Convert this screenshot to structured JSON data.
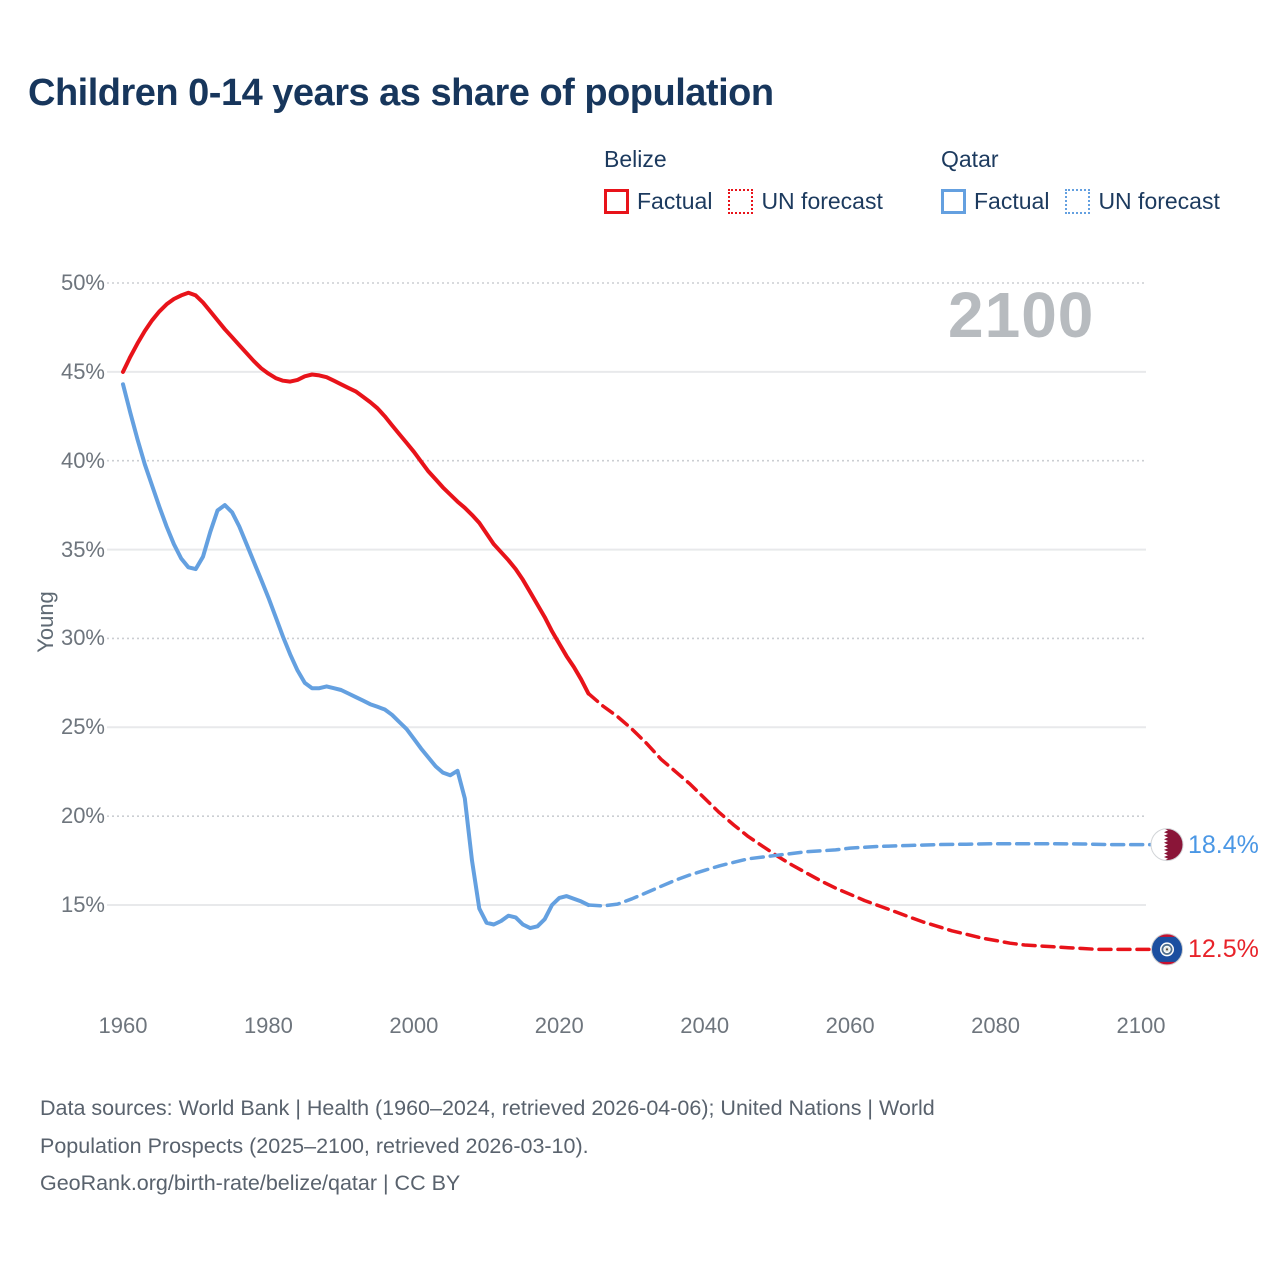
{
  "title": "Children 0-14 years as share of population",
  "watermark": "2100",
  "colors": {
    "belize": "#e8131a",
    "qatar": "#64a0e0",
    "end_label_red": "#e8232a",
    "end_label_blue": "#4a97e5",
    "grid_solid": "#e8e9eb",
    "grid_dotted": "#cbced2",
    "qatar_flag_maroon": "#8a1538",
    "belize_flag_blue": "#1b4fa0",
    "belize_flag_red": "#c8102e"
  },
  "legend": {
    "groups": [
      {
        "name": "Belize",
        "color_key": "belize",
        "items": [
          {
            "label": "Factual",
            "style": "solid"
          },
          {
            "label": "UN forecast",
            "style": "dotted"
          }
        ]
      },
      {
        "name": "Qatar",
        "color_key": "qatar",
        "items": [
          {
            "label": "Factual",
            "style": "solid"
          },
          {
            "label": "UN forecast",
            "style": "dotted"
          }
        ]
      }
    ]
  },
  "footer": {
    "lines": [
      "Data sources: World Bank | Health (1960–2024, retrieved 2026-04-06); United Nations | World",
      "Population Prospects (2025–2100, retrieved 2026-03-10).",
      "GeoRank.org/birth-rate/belize/qatar | CC BY"
    ]
  },
  "chart_data": {
    "type": "line",
    "title": "Children 0-14 years as share of population",
    "xlabel": "",
    "ylabel": "Young",
    "xlim": [
      1960,
      2100
    ],
    "ylim": [
      12,
      50
    ],
    "x_ticks": [
      1960,
      1980,
      2000,
      2020,
      2040,
      2060,
      2080,
      2100
    ],
    "y_ticks": [
      50,
      45,
      40,
      35,
      30,
      25,
      20,
      15
    ],
    "grid": "on",
    "legend_position": "top-right",
    "series": [
      {
        "id": "belize-factual",
        "name": "Belize Factual",
        "style": "solid",
        "color_key": "belize",
        "points": [
          [
            1960,
            45.0
          ],
          [
            1961,
            45.85
          ],
          [
            1962,
            46.6
          ],
          [
            1963,
            47.3
          ],
          [
            1964,
            47.9
          ],
          [
            1965,
            48.4
          ],
          [
            1966,
            48.8
          ],
          [
            1967,
            49.1
          ],
          [
            1968,
            49.3
          ],
          [
            1969,
            49.45
          ],
          [
            1970,
            49.3
          ],
          [
            1971,
            48.9
          ],
          [
            1972,
            48.4
          ],
          [
            1973,
            47.9
          ],
          [
            1974,
            47.4
          ],
          [
            1975,
            46.95
          ],
          [
            1976,
            46.5
          ],
          [
            1977,
            46.05
          ],
          [
            1978,
            45.6
          ],
          [
            1979,
            45.2
          ],
          [
            1980,
            44.9
          ],
          [
            1981,
            44.65
          ],
          [
            1982,
            44.5
          ],
          [
            1983,
            44.45
          ],
          [
            1984,
            44.55
          ],
          [
            1985,
            44.75
          ],
          [
            1986,
            44.85
          ],
          [
            1987,
            44.8
          ],
          [
            1988,
            44.7
          ],
          [
            1989,
            44.5
          ],
          [
            1990,
            44.3
          ],
          [
            1991,
            44.1
          ],
          [
            1992,
            43.9
          ],
          [
            1993,
            43.6
          ],
          [
            1994,
            43.3
          ],
          [
            1995,
            42.95
          ],
          [
            1996,
            42.5
          ],
          [
            1997,
            42.0
          ],
          [
            1998,
            41.5
          ],
          [
            1999,
            41.0
          ],
          [
            2000,
            40.5
          ],
          [
            2001,
            39.95
          ],
          [
            2002,
            39.4
          ],
          [
            2003,
            38.95
          ],
          [
            2004,
            38.5
          ],
          [
            2005,
            38.1
          ],
          [
            2006,
            37.7
          ],
          [
            2007,
            37.35
          ],
          [
            2008,
            36.95
          ],
          [
            2009,
            36.5
          ],
          [
            2010,
            35.9
          ],
          [
            2011,
            35.3
          ],
          [
            2012,
            34.85
          ],
          [
            2013,
            34.4
          ],
          [
            2014,
            33.9
          ],
          [
            2015,
            33.3
          ],
          [
            2016,
            32.6
          ],
          [
            2017,
            31.9
          ],
          [
            2018,
            31.2
          ],
          [
            2019,
            30.4
          ],
          [
            2020,
            29.7
          ],
          [
            2021,
            29.0
          ],
          [
            2022,
            28.4
          ],
          [
            2023,
            27.7
          ],
          [
            2024,
            26.9
          ]
        ]
      },
      {
        "id": "belize-forecast",
        "name": "Belize UN forecast",
        "style": "dashed",
        "color_key": "belize",
        "end_label": "12.5%",
        "points": [
          [
            2024,
            26.9
          ],
          [
            2026,
            26.2
          ],
          [
            2028,
            25.6
          ],
          [
            2030,
            24.9
          ],
          [
            2032,
            24.1
          ],
          [
            2034,
            23.2
          ],
          [
            2036,
            22.5
          ],
          [
            2038,
            21.8
          ],
          [
            2040,
            21.0
          ],
          [
            2042,
            20.2
          ],
          [
            2044,
            19.5
          ],
          [
            2046,
            18.85
          ],
          [
            2048,
            18.3
          ],
          [
            2050,
            17.75
          ],
          [
            2052,
            17.25
          ],
          [
            2054,
            16.8
          ],
          [
            2056,
            16.35
          ],
          [
            2058,
            15.95
          ],
          [
            2060,
            15.6
          ],
          [
            2062,
            15.25
          ],
          [
            2064,
            14.95
          ],
          [
            2066,
            14.65
          ],
          [
            2068,
            14.35
          ],
          [
            2070,
            14.05
          ],
          [
            2072,
            13.8
          ],
          [
            2074,
            13.55
          ],
          [
            2076,
            13.35
          ],
          [
            2078,
            13.15
          ],
          [
            2080,
            13.0
          ],
          [
            2082,
            12.85
          ],
          [
            2084,
            12.75
          ],
          [
            2086,
            12.7
          ],
          [
            2088,
            12.65
          ],
          [
            2090,
            12.6
          ],
          [
            2092,
            12.55
          ],
          [
            2094,
            12.5
          ],
          [
            2096,
            12.5
          ],
          [
            2098,
            12.5
          ],
          [
            2100,
            12.5
          ]
        ]
      },
      {
        "id": "qatar-factual",
        "name": "Qatar Factual",
        "style": "solid",
        "color_key": "qatar",
        "points": [
          [
            1960,
            44.3
          ],
          [
            1961,
            42.7
          ],
          [
            1962,
            41.2
          ],
          [
            1963,
            39.8
          ],
          [
            1964,
            38.6
          ],
          [
            1965,
            37.4
          ],
          [
            1966,
            36.3
          ],
          [
            1967,
            35.3
          ],
          [
            1968,
            34.5
          ],
          [
            1969,
            34.0
          ],
          [
            1970,
            33.9
          ],
          [
            1971,
            34.6
          ],
          [
            1972,
            36.0
          ],
          [
            1973,
            37.2
          ],
          [
            1974,
            37.5
          ],
          [
            1975,
            37.1
          ],
          [
            1976,
            36.3
          ],
          [
            1977,
            35.3
          ],
          [
            1978,
            34.3
          ],
          [
            1979,
            33.3
          ],
          [
            1980,
            32.3
          ],
          [
            1981,
            31.2
          ],
          [
            1982,
            30.1
          ],
          [
            1983,
            29.1
          ],
          [
            1984,
            28.2
          ],
          [
            1985,
            27.5
          ],
          [
            1986,
            27.2
          ],
          [
            1987,
            27.2
          ],
          [
            1988,
            27.3
          ],
          [
            1989,
            27.2
          ],
          [
            1990,
            27.1
          ],
          [
            1991,
            26.9
          ],
          [
            1992,
            26.7
          ],
          [
            1993,
            26.5
          ],
          [
            1994,
            26.3
          ],
          [
            1995,
            26.15
          ],
          [
            1996,
            26.0
          ],
          [
            1997,
            25.7
          ],
          [
            1998,
            25.3
          ],
          [
            1999,
            24.9
          ],
          [
            2000,
            24.35
          ],
          [
            2001,
            23.8
          ],
          [
            2002,
            23.3
          ],
          [
            2003,
            22.8
          ],
          [
            2004,
            22.45
          ],
          [
            2005,
            22.3
          ],
          [
            2006,
            22.55
          ],
          [
            2007,
            21.0
          ],
          [
            2008,
            17.5
          ],
          [
            2009,
            14.8
          ],
          [
            2010,
            14.0
          ],
          [
            2011,
            13.9
          ],
          [
            2012,
            14.1
          ],
          [
            2013,
            14.4
          ],
          [
            2014,
            14.3
          ],
          [
            2015,
            13.9
          ],
          [
            2016,
            13.7
          ],
          [
            2017,
            13.8
          ],
          [
            2018,
            14.2
          ],
          [
            2019,
            15.0
          ],
          [
            2020,
            15.4
          ],
          [
            2021,
            15.5
          ],
          [
            2022,
            15.35
          ],
          [
            2023,
            15.2
          ],
          [
            2024,
            15.0
          ]
        ]
      },
      {
        "id": "qatar-forecast",
        "name": "Qatar UN forecast",
        "style": "dashed",
        "color_key": "qatar",
        "end_label": "18.4%",
        "points": [
          [
            2024,
            15.0
          ],
          [
            2026,
            14.95
          ],
          [
            2028,
            15.05
          ],
          [
            2030,
            15.35
          ],
          [
            2032,
            15.7
          ],
          [
            2034,
            16.05
          ],
          [
            2036,
            16.4
          ],
          [
            2038,
            16.7
          ],
          [
            2040,
            16.95
          ],
          [
            2042,
            17.2
          ],
          [
            2044,
            17.4
          ],
          [
            2046,
            17.6
          ],
          [
            2048,
            17.7
          ],
          [
            2050,
            17.8
          ],
          [
            2052,
            17.9
          ],
          [
            2054,
            18.0
          ],
          [
            2056,
            18.05
          ],
          [
            2058,
            18.1
          ],
          [
            2060,
            18.2
          ],
          [
            2064,
            18.3
          ],
          [
            2068,
            18.35
          ],
          [
            2072,
            18.4
          ],
          [
            2076,
            18.42
          ],
          [
            2080,
            18.45
          ],
          [
            2084,
            18.45
          ],
          [
            2088,
            18.45
          ],
          [
            2092,
            18.43
          ],
          [
            2096,
            18.4
          ],
          [
            2100,
            18.4
          ]
        ]
      }
    ],
    "end_markers": [
      {
        "flag": "qatar",
        "value": 18.4,
        "label": "18.4%",
        "label_color_key": "end_label_blue"
      },
      {
        "flag": "belize",
        "value": 12.5,
        "label": "12.5%",
        "label_color_key": "end_label_red"
      }
    ]
  }
}
